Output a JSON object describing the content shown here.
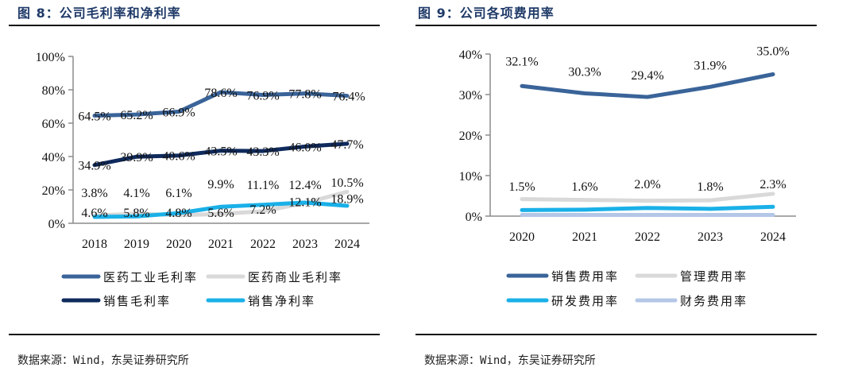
{
  "left": {
    "title": "图 8：公司毛利率和净利率",
    "source": "数据来源：Wind，东吴证券研究所"
  },
  "right": {
    "title": "图 9：公司各项费用率",
    "source": "数据来源：Wind，东吴证券研究所"
  },
  "chart_data": [
    {
      "type": "line",
      "title": "公司毛利率和净利率",
      "xlabel": "",
      "ylabel": "",
      "categories": [
        "2018",
        "2019",
        "2020",
        "2021",
        "2022",
        "2023",
        "2024"
      ],
      "ylim": [
        0,
        100
      ],
      "yticks": [
        0,
        20,
        40,
        60,
        80,
        100
      ],
      "ytick_labels": [
        "0%",
        "20%",
        "40%",
        "60%",
        "80%",
        "100%"
      ],
      "grid": false,
      "legend_position": "bottom",
      "series": [
        {
          "name": "医药工业毛利率",
          "color": "#3a6499",
          "values": [
            64.5,
            65.2,
            66.9,
            78.6,
            76.9,
            77.8,
            76.4
          ],
          "labels": [
            "64.5%",
            "65.2%",
            "66.9%",
            "78.6%",
            "76.9%",
            "77.8%",
            "76.4%"
          ]
        },
        {
          "name": "医药商业毛利率",
          "color": "#d9d9d9",
          "values": [
            4.6,
            5.8,
            4.8,
            5.6,
            7.2,
            12.1,
            18.9
          ],
          "labels": [
            "4.6%",
            "5.8%",
            "4.8%",
            "5.6%",
            "7.2%",
            "12.1%",
            "18.9%"
          ]
        },
        {
          "name": "销售毛利率",
          "color": "#0f2a5c",
          "values": [
            34.9,
            39.9,
            40.6,
            43.5,
            43.3,
            46.0,
            47.7
          ],
          "labels": [
            "34.9%",
            "39.9%",
            "40.6%",
            "43.5%",
            "43.3%",
            "46.0%",
            "47.7%"
          ]
        },
        {
          "name": "销售净利率",
          "color": "#1ab0e8",
          "values": [
            3.8,
            4.1,
            6.1,
            9.9,
            11.1,
            12.4,
            10.5
          ],
          "labels": [
            "3.8%",
            "4.1%",
            "6.1%",
            "9.9%",
            "11.1%",
            "12.4%",
            "10.5%"
          ]
        }
      ]
    },
    {
      "type": "line",
      "title": "公司各项费用率",
      "xlabel": "",
      "ylabel": "",
      "categories": [
        "2020",
        "2021",
        "2022",
        "2023",
        "2024"
      ],
      "ylim": [
        0,
        40
      ],
      "yticks": [
        0,
        10,
        20,
        30,
        40
      ],
      "ytick_labels": [
        "0%",
        "10%",
        "20%",
        "30%",
        "40%"
      ],
      "grid": false,
      "legend_position": "bottom",
      "series": [
        {
          "name": "销售费用率",
          "color": "#3a6499",
          "values": [
            32.1,
            30.3,
            29.4,
            31.9,
            35.0
          ],
          "labels": [
            "32.1%",
            "30.3%",
            "29.4%",
            "31.9%",
            "35.0%"
          ]
        },
        {
          "name": "管理费用率",
          "color": "#d9d9d9",
          "values": [
            4.2,
            4.0,
            3.8,
            3.9,
            5.5
          ],
          "labels": []
        },
        {
          "name": "研发费用率",
          "color": "#1ab0e8",
          "values": [
            1.5,
            1.6,
            2.0,
            1.8,
            2.3
          ],
          "labels": [
            "1.5%",
            "1.6%",
            "2.0%",
            "1.8%",
            "2.3%"
          ]
        },
        {
          "name": "财务费用率",
          "color": "#b4c7e7",
          "values": [
            0.3,
            0.3,
            0.3,
            0.3,
            0.3
          ],
          "labels": []
        }
      ]
    }
  ]
}
